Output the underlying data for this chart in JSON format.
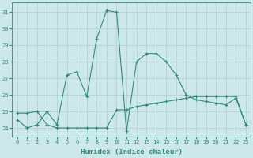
{
  "line1_x": [
    0,
    1,
    2,
    3,
    4,
    5,
    6,
    7,
    8,
    9,
    10,
    11,
    12,
    13,
    14,
    15,
    16,
    17,
    18,
    19,
    20,
    21,
    22,
    23
  ],
  "line1_y": [
    24.5,
    24.0,
    24.2,
    25.0,
    24.2,
    27.2,
    27.4,
    25.9,
    29.4,
    31.1,
    31.0,
    23.8,
    28.0,
    28.5,
    28.5,
    28.0,
    27.2,
    26.0,
    25.7,
    25.6,
    25.5,
    25.4,
    25.8,
    24.2
  ],
  "line2_x": [
    0,
    1,
    2,
    3,
    4,
    5,
    6,
    7,
    8,
    9,
    10,
    11,
    12,
    13,
    14,
    15,
    16,
    17,
    18,
    19,
    20,
    21,
    22,
    23
  ],
  "line2_y": [
    24.9,
    24.9,
    25.0,
    24.2,
    24.0,
    24.0,
    24.0,
    24.0,
    24.0,
    24.0,
    25.1,
    25.1,
    25.3,
    25.4,
    25.5,
    25.6,
    25.7,
    25.8,
    25.9,
    25.9,
    25.9,
    25.9,
    25.9,
    24.2
  ],
  "line_color": "#2e8b7a",
  "bg_color": "#cce8e8",
  "grid_color": "#b0cccc",
  "xlabel": "Humidex (Indice chaleur)",
  "ylabel_ticks": [
    24,
    25,
    26,
    27,
    28,
    29,
    30,
    31
  ],
  "xlim": [
    -0.5,
    23.5
  ],
  "ylim": [
    23.5,
    31.6
  ],
  "figsize": [
    3.2,
    2.0
  ],
  "dpi": 100
}
